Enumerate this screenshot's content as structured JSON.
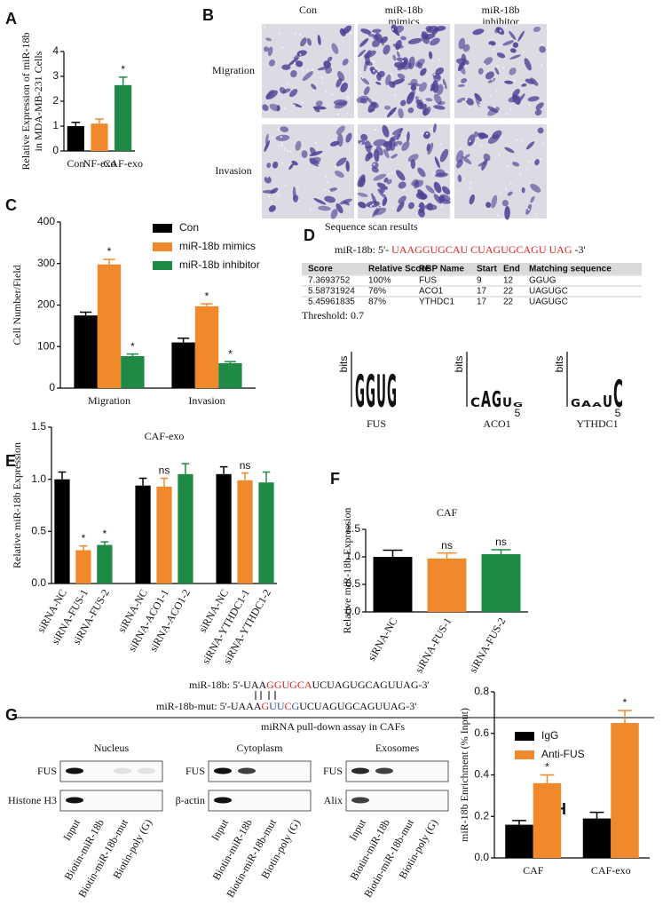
{
  "chart_data": [
    {
      "type": "bar",
      "label": "A",
      "ylabel": [
        "Relative Expression of miR-18b",
        "in MDA-MB-231 Cells"
      ],
      "categories": [
        "Con",
        "NF-exo",
        "CAF-exo"
      ],
      "values": [
        1.0,
        1.1,
        2.65
      ],
      "errors": [
        0.15,
        0.18,
        0.32
      ],
      "colors": [
        "#000000",
        "#f0892c",
        "#1e8a45"
      ],
      "significance": [
        null,
        null,
        "*"
      ],
      "ylim": [
        0,
        4
      ],
      "yticks": [
        0,
        1,
        2,
        3,
        4
      ]
    },
    {
      "type": "grouped_bar",
      "label": "C",
      "ylabel": [
        "Cell Number/Field"
      ],
      "categories": [
        "Migration",
        "Invasion"
      ],
      "series": [
        {
          "name": "Con",
          "color": "#000000",
          "values": [
            175,
            110
          ],
          "errors": [
            8,
            10
          ],
          "significance": [
            null,
            null
          ]
        },
        {
          "name": "miR-18b mimics",
          "color": "#f0892c",
          "values": [
            298,
            197
          ],
          "errors": [
            12,
            6
          ],
          "significance": [
            "*",
            "*"
          ]
        },
        {
          "name": "miR-18b inhibitor",
          "color": "#1e8a45",
          "values": [
            77,
            60
          ],
          "errors": [
            5,
            4
          ],
          "significance": [
            "*",
            "*"
          ]
        }
      ],
      "ylim": [
        0,
        400
      ],
      "yticks": [
        0,
        100,
        200,
        300,
        400
      ]
    },
    {
      "type": "bar",
      "label": "E",
      "title": "CAF-exo",
      "ylabel": [
        "Relative miR-18b Expression"
      ],
      "categories": [
        "siRNA-NC",
        "siRNA-FUS-1",
        "siRNA-FUS-2",
        "siRNA-NC",
        "siRNA-ACO1-1",
        "siRNA-ACO1-2",
        "siRNA-NC",
        "siRNA-YTHDC1-1",
        "siRNA-YTHDC1-2"
      ],
      "values": [
        1.0,
        0.32,
        0.37,
        0.94,
        0.93,
        1.05,
        1.05,
        0.99,
        0.97
      ],
      "errors": [
        0.07,
        0.04,
        0.03,
        0.07,
        0.08,
        0.1,
        0.07,
        0.07,
        0.1
      ],
      "colors": [
        "#000000",
        "#f0892c",
        "#1e8a45",
        "#000000",
        "#f0892c",
        "#1e8a45",
        "#000000",
        "#f0892c",
        "#1e8a45"
      ],
      "significance": [
        null,
        "*",
        "*",
        null,
        "ns",
        null,
        null,
        "ns",
        null
      ],
      "ylim": [
        0,
        1.5
      ],
      "yticks": [
        {
          "value": 0,
          "label": "0.0"
        },
        0.5,
        {
          "value": 1,
          "label": "1.0"
        },
        1.5
      ]
    },
    {
      "type": "bar",
      "label": "F",
      "title": "CAF",
      "ylabel": [
        "Relative miR-18b Expression"
      ],
      "categories": [
        "siRNA-NC",
        "siRNA-FUS-1",
        "siRNA-FUS-2"
      ],
      "values": [
        1.0,
        0.97,
        1.05
      ],
      "errors": [
        0.12,
        0.1,
        0.08
      ],
      "colors": [
        "#000000",
        "#f0892c",
        "#1e8a45"
      ],
      "significance": [
        null,
        "ns",
        "ns"
      ],
      "ylim": [
        0,
        1.5
      ],
      "yticks": [
        {
          "value": 0,
          "label": "0.0"
        },
        0.5,
        {
          "value": 1,
          "label": "1.0"
        },
        1.5
      ]
    },
    {
      "type": "grouped_bar",
      "label": "H",
      "ylabel": [
        "miR-18b Enrichment (% Input)"
      ],
      "categories": [
        "CAF",
        "CAF-exo"
      ],
      "series": [
        {
          "name": "IgG",
          "color": "#000000",
          "values": [
            0.16,
            0.19
          ],
          "errors": [
            0.02,
            0.03
          ],
          "significance": [
            null,
            null
          ]
        },
        {
          "name": "Anti-FUS",
          "color": "#f0892c",
          "values": [
            0.36,
            0.65
          ],
          "errors": [
            0.04,
            0.06
          ],
          "significance": [
            "*",
            "*"
          ]
        }
      ],
      "ylim": [
        0,
        0.8
      ],
      "yticks": [
        {
          "value": 0,
          "label": "0.0"
        },
        0.2,
        0.4,
        0.6,
        0.8
      ]
    }
  ],
  "panel_b": {
    "label": "B",
    "columns": [
      [
        "Con"
      ],
      [
        "miR-18b",
        "mimics"
      ],
      [
        "miR-18b",
        "inhibitor"
      ]
    ],
    "rows": [
      "Migration",
      "Invasion"
    ]
  },
  "panel_d": {
    "label": "D",
    "heading": "Sequence scan results",
    "sequence": [
      {
        "text": "miR-18b: 5'- "
      },
      {
        "text": "UAAGGUGCAU CUAGUGCAGU UAG",
        "color": "#d9231f"
      },
      {
        "text": " -3'"
      }
    ],
    "table": {
      "columns": [
        "Score",
        "Relative Score",
        "RBP Name",
        "Start",
        "End",
        "Matching sequence"
      ],
      "rows": [
        [
          "7.3693752",
          "100%",
          "FUS",
          "9",
          "12",
          "GGUG"
        ],
        [
          "5.58731924",
          "76%",
          "ACO1",
          "17",
          "22",
          "UAGUGC"
        ],
        [
          "5.45961835",
          "87%",
          "YTHDC1",
          "17",
          "22",
          "UAGUGC"
        ]
      ]
    },
    "threshold": "Threshold: 0.7",
    "logos": [
      {
        "name": "FUS",
        "ylabel": "bits",
        "letters": [
          "G",
          "G",
          "U",
          "G"
        ]
      },
      {
        "name": "ACO1",
        "ylabel": "bits",
        "letters": [
          "C",
          "A",
          "G",
          "U",
          "G"
        ],
        "xtick": 5
      },
      {
        "name": "YTHDC1",
        "ylabel": "bits",
        "letters": [
          "G",
          "A",
          "A",
          "U",
          "C"
        ],
        "xtick": 5
      }
    ]
  },
  "panel_g": {
    "label": "G",
    "sequences": [
      [
        {
          "text": "miR-18b: 5'-UAA"
        },
        {
          "text": "GGUGCA",
          "color": "#d9231f"
        },
        {
          "text": "UCUAGUGCAGUUAG-3'"
        }
      ],
      [
        {
          "text": "miR-18b-mut: 5'-UAAA"
        },
        {
          "text": "G",
          "color": "#d9231f"
        },
        {
          "text": "UU",
          "color": "#2a4fa8"
        },
        {
          "text": "C",
          "color": "#d9231f"
        },
        {
          "text": "G",
          "color": "#2a4fa8"
        },
        {
          "text": "UCUAGUGCAGUUAG-3'"
        }
      ]
    ],
    "caption": "miRNA pull-down assay in CAFs",
    "blots": [
      {
        "title": "Nucleus",
        "rows": [
          "FUS",
          "Histone H3"
        ]
      },
      {
        "title": "Cytoplasm",
        "rows": [
          "FUS",
          "β-actin"
        ]
      },
      {
        "title": "Exosomes",
        "rows": [
          "FUS",
          "Alix"
        ]
      }
    ],
    "lanes": [
      "Input",
      "Biotin-miR-18b",
      "Biotin-miR-18b-mut",
      "Biotin-poly (G)"
    ]
  }
}
